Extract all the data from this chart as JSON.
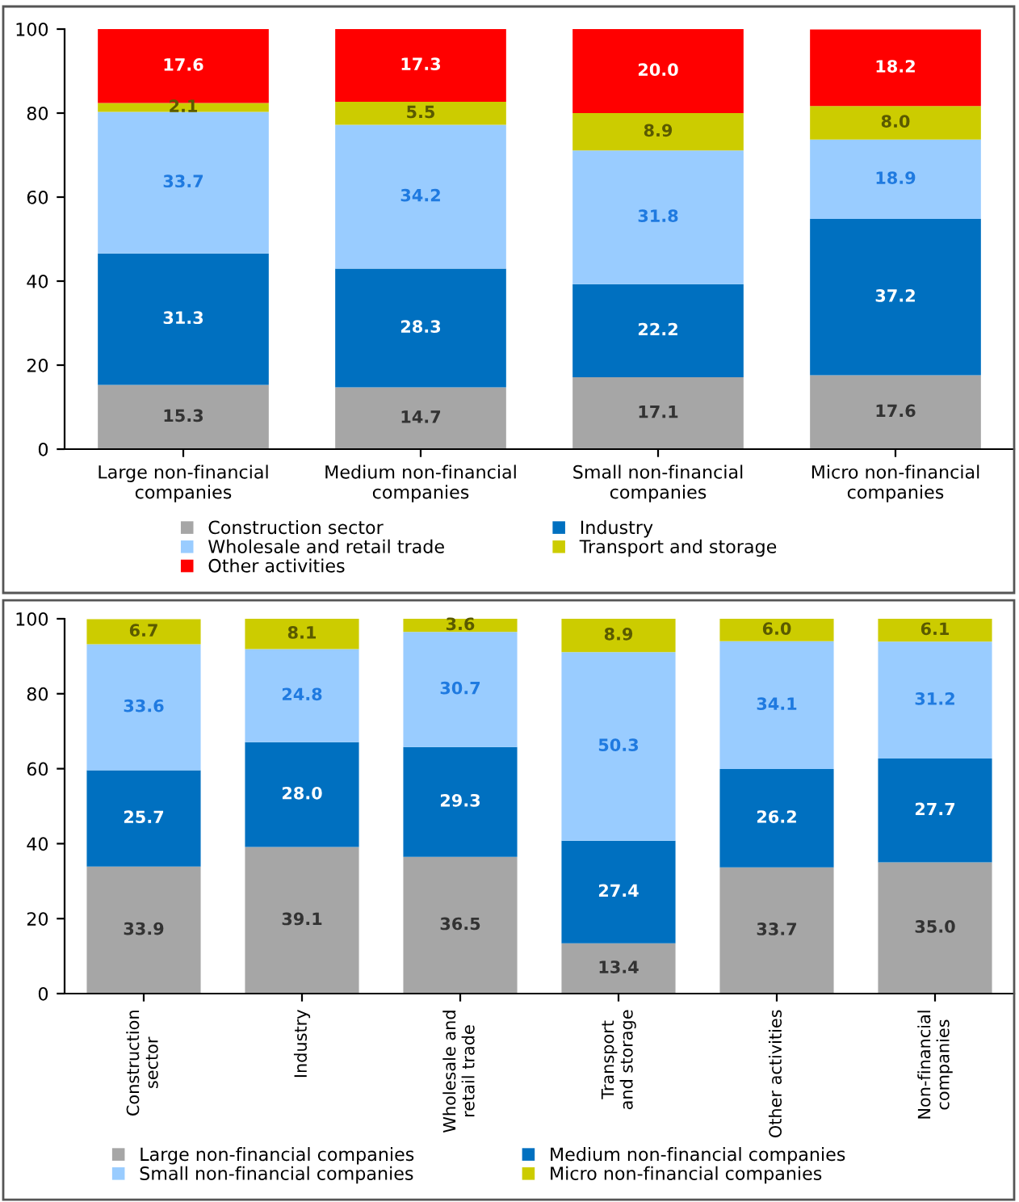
{
  "chart_data": [
    {
      "type": "bar",
      "stacked": true,
      "categories": [
        "Large non-financial companies",
        "Medium non-financial companies",
        "Small non-financial companies",
        "Micro non-financial companies"
      ],
      "series": [
        {
          "name": "Construction sector",
          "color": "#a6a6a6",
          "values": [
            15.3,
            14.7,
            17.1,
            17.6
          ],
          "value_labels": [
            "15.3",
            "14.7",
            "17.1",
            "17.6"
          ]
        },
        {
          "name": "Industry",
          "color": "#0070c0",
          "values": [
            31.3,
            28.3,
            22.2,
            37.2
          ],
          "value_labels": [
            "31.3",
            "28.3",
            "22.2",
            "37.2"
          ]
        },
        {
          "name": "Wholesale and retail trade",
          "color": "#99ccff",
          "values": [
            33.7,
            34.2,
            31.8,
            18.9
          ],
          "value_labels": [
            "33.7",
            "34.2",
            "31.8",
            "18.9"
          ]
        },
        {
          "name": "Transport and storage",
          "color": "#cccc00",
          "values": [
            2.1,
            5.5,
            8.9,
            8.0
          ],
          "value_labels": [
            "2.1",
            "5.5",
            "8.9",
            "8.0"
          ]
        },
        {
          "name": "Other activities",
          "color": "#ff0000",
          "values": [
            17.6,
            17.3,
            20.0,
            18.2
          ],
          "value_labels": [
            "17.6",
            "17.3",
            "20.0",
            "18.2"
          ]
        }
      ],
      "ylim": [
        0,
        100
      ],
      "yticks": [
        0,
        20,
        40,
        60,
        80,
        100
      ],
      "grid": false,
      "legend": "bottom"
    },
    {
      "type": "bar",
      "stacked": true,
      "categories": [
        "Construction sector",
        "Industry",
        "Wholesale and retail trade",
        "Transport and storage",
        "Other activities",
        "Non-financial companies"
      ],
      "series": [
        {
          "name": "Large non-financial companies",
          "color": "#a6a6a6",
          "values": [
            33.9,
            39.1,
            36.5,
            13.4,
            33.7,
            35.0
          ],
          "value_labels": [
            "33.9",
            "39.1",
            "36.5",
            "13.4",
            "33.7",
            "35.0"
          ]
        },
        {
          "name": "Medium non-financial companies",
          "color": "#0070c0",
          "values": [
            25.7,
            28.0,
            29.3,
            27.4,
            26.2,
            27.7
          ],
          "value_labels": [
            "25.7",
            "28.0",
            "29.3",
            "27.4",
            "26.2",
            "27.7"
          ]
        },
        {
          "name": "Small non-financial companies",
          "color": "#99ccff",
          "values": [
            33.6,
            24.8,
            30.7,
            50.3,
            34.1,
            31.2
          ],
          "value_labels": [
            "33.6",
            "24.8",
            "30.7",
            "50.3",
            "34.1",
            "31.2"
          ]
        },
        {
          "name": "Micro non-financial companies",
          "color": "#cccc00",
          "values": [
            6.7,
            8.1,
            3.6,
            8.9,
            6.0,
            6.1
          ],
          "value_labels": [
            "6.7",
            "8.1",
            "3.6",
            "8.9",
            "6.0",
            "6.1"
          ]
        }
      ],
      "ylim": [
        0,
        100
      ],
      "yticks": [
        0,
        20,
        40,
        60,
        80,
        100
      ],
      "grid": false,
      "legend": "bottom"
    }
  ]
}
